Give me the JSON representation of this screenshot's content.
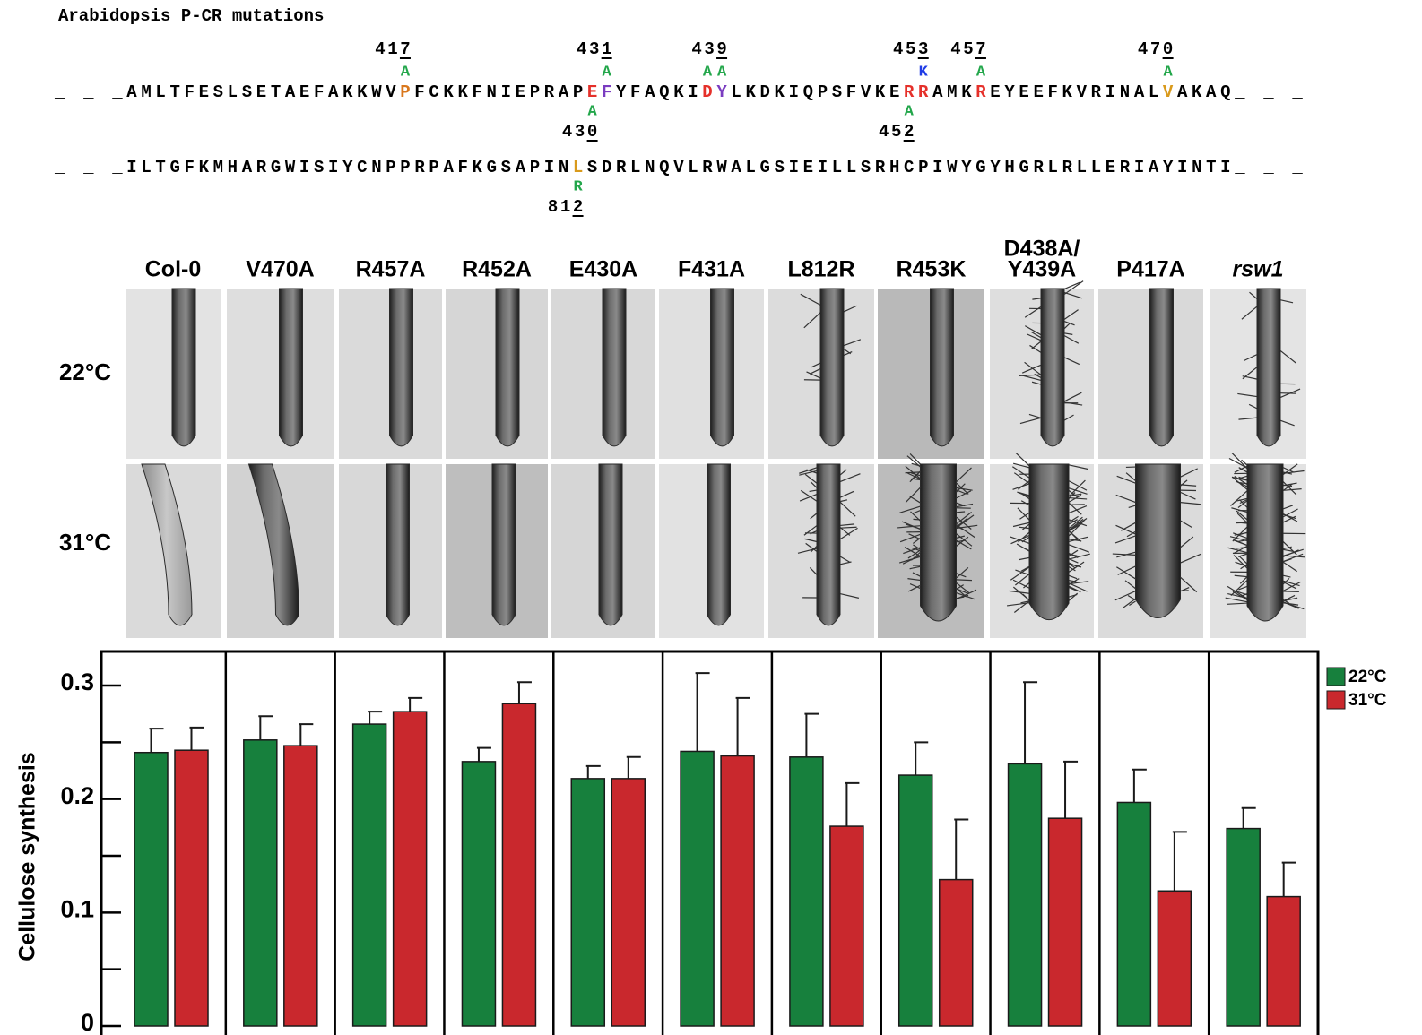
{
  "title": "Arabidopsis P-CR mutations",
  "sequence_lines": [
    {
      "segments": [
        {
          "text": "_ _ _AMLTFESLSETAEFAKKWV"
        },
        {
          "text": "P",
          "color": "#d9771c",
          "above": {
            "number": "417",
            "substitution": "A",
            "color": "#22a64a"
          }
        },
        {
          "text": "FCKKFNIEPRAP"
        },
        {
          "text": "E",
          "color": "#e5302a",
          "below": {
            "number": "430",
            "substitution": "A",
            "color": "#22a64a"
          }
        },
        {
          "text": "F",
          "color": "#7a3cc0",
          "above": {
            "number": "431",
            "substitution": "A",
            "color": "#22a64a"
          }
        },
        {
          "text": "YFAQKI"
        },
        {
          "text": "D",
          "color": "#e5302a",
          "above": {
            "substitution": "A",
            "color": "#22a64a"
          }
        },
        {
          "text": "Y",
          "color": "#7a3cc0",
          "above": {
            "number": "439",
            "substitution": "A",
            "color": "#22a64a"
          }
        },
        {
          "text": "LKDKIQPSFVKE"
        },
        {
          "text": "R",
          "color": "#e5302a",
          "below": {
            "number": "452",
            "substitution": "A",
            "color": "#22a64a"
          }
        },
        {
          "text": "R",
          "color": "#e5302a",
          "above": {
            "number": "453",
            "substitution": "K",
            "color": "#1f3ce6"
          }
        },
        {
          "text": "AMK"
        },
        {
          "text": "R",
          "color": "#e5302a",
          "above": {
            "number": "457",
            "substitution": "A",
            "color": "#22a64a"
          }
        },
        {
          "text": "EYEEFKVRINAL"
        },
        {
          "text": "V",
          "color": "#d99a1c",
          "above": {
            "number": "470",
            "substitution": "A",
            "color": "#22a64a"
          }
        },
        {
          "text": "AKAQ_ _ _"
        }
      ]
    },
    {
      "segments": [
        {
          "text": "_ _ _ILTGFKMHARGWISIYCNPPRPAFKGSAPIN"
        },
        {
          "text": "L",
          "color": "#d99a1c",
          "below": {
            "number": "812",
            "substitution": "R",
            "color": "#22a64a"
          }
        },
        {
          "text": "SDRLNQVLRWALGSIEILLSRHCPIWYGYHGRLRLLERIAYINTI_ _ _"
        }
      ]
    }
  ],
  "photo_panel": {
    "columns": [
      {
        "label": "Col-0"
      },
      {
        "label": "V470A"
      },
      {
        "label": "R457A"
      },
      {
        "label": "R452A"
      },
      {
        "label": "E430A"
      },
      {
        "label": "F431A"
      },
      {
        "label": "L812R"
      },
      {
        "label": "R453K"
      },
      {
        "label": [
          "D438A/",
          "Y439A"
        ]
      },
      {
        "label": "P417A"
      },
      {
        "label": "rsw1",
        "style": "italic"
      }
    ],
    "rows": [
      "22°C",
      "31°C"
    ]
  },
  "chart_data": {
    "type": "bar",
    "ylabel": "Cellulose synthesis",
    "ylim": [
      0,
      0.33
    ],
    "yticks": [
      0,
      0.1,
      0.2,
      0.3
    ],
    "yticks_minor": [
      0.05,
      0.15,
      0.25
    ],
    "legend": "right",
    "series": [
      {
        "name": "22°C",
        "color": "#17803d",
        "values": [
          0.241,
          0.252,
          0.266,
          0.233,
          0.218,
          0.242,
          0.237,
          0.221,
          0.231,
          0.197,
          0.174
        ],
        "errors": [
          0.021,
          0.021,
          0.011,
          0.012,
          0.011,
          0.069,
          0.038,
          0.029,
          0.072,
          0.029,
          0.018
        ]
      },
      {
        "name": "31°C",
        "color": "#c9282d",
        "values": [
          0.243,
          0.247,
          0.277,
          0.284,
          0.218,
          0.238,
          0.176,
          0.129,
          0.183,
          0.119,
          0.114
        ],
        "errors": [
          0.02,
          0.019,
          0.012,
          0.019,
          0.019,
          0.051,
          0.038,
          0.053,
          0.05,
          0.052,
          0.03
        ]
      }
    ]
  }
}
